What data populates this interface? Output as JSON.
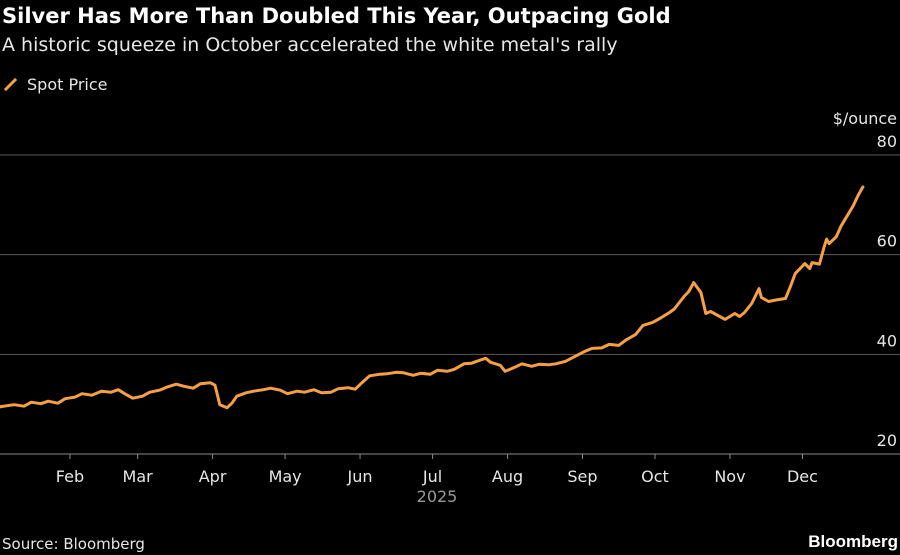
{
  "header": {
    "title": "Silver Has More Than Doubled This Year, Outpacing Gold",
    "subtitle": "A historic squeeze in October accelerated the white metal's rally"
  },
  "legend": {
    "label": "Spot Price",
    "color": "#f7a043"
  },
  "footer": {
    "source": "Source: Bloomberg",
    "brand": "Bloomberg"
  },
  "chart_data": {
    "type": "line",
    "title": "Silver Has More Than Doubled This Year, Outpacing Gold",
    "subtitle": "A historic squeeze in October accelerated the white metal's rally",
    "ylabel": "$/ounce",
    "xlabel": "2025",
    "ylim": [
      20,
      80
    ],
    "yticks": [
      20,
      40,
      60,
      80
    ],
    "grid": true,
    "legend_position": "top-left",
    "background_color": "#000000",
    "grid_color": "#5a5a5a",
    "x_ticks": [
      {
        "label": "Feb",
        "date": "2025-02-01"
      },
      {
        "label": "Mar",
        "date": "2025-03-01"
      },
      {
        "label": "Apr",
        "date": "2025-04-01"
      },
      {
        "label": "May",
        "date": "2025-05-01"
      },
      {
        "label": "Jun",
        "date": "2025-06-01"
      },
      {
        "label": "Jul",
        "date": "2025-07-01"
      },
      {
        "label": "Aug",
        "date": "2025-08-01"
      },
      {
        "label": "Sep",
        "date": "2025-09-01"
      },
      {
        "label": "Oct",
        "date": "2025-10-01"
      },
      {
        "label": "Nov",
        "date": "2025-11-01"
      },
      {
        "label": "Dec",
        "date": "2025-12-01"
      }
    ],
    "series": [
      {
        "name": "Spot Price",
        "color": "#f7a043",
        "points": [
          [
            "2025-01-02",
            29.4
          ],
          [
            "2025-01-06",
            29.7
          ],
          [
            "2025-01-09",
            29.9
          ],
          [
            "2025-01-13",
            29.6
          ],
          [
            "2025-01-16",
            30.4
          ],
          [
            "2025-01-20",
            30.1
          ],
          [
            "2025-01-23",
            30.6
          ],
          [
            "2025-01-27",
            30.2
          ],
          [
            "2025-01-30",
            31.1
          ],
          [
            "2025-02-03",
            31.4
          ],
          [
            "2025-02-06",
            32.1
          ],
          [
            "2025-02-10",
            31.8
          ],
          [
            "2025-02-14",
            32.6
          ],
          [
            "2025-02-18",
            32.4
          ],
          [
            "2025-02-21",
            32.9
          ],
          [
            "2025-02-24",
            32.0
          ],
          [
            "2025-02-27",
            31.2
          ],
          [
            "2025-03-03",
            31.6
          ],
          [
            "2025-03-06",
            32.4
          ],
          [
            "2025-03-10",
            32.8
          ],
          [
            "2025-03-13",
            33.4
          ],
          [
            "2025-03-17",
            34.0
          ],
          [
            "2025-03-20",
            33.6
          ],
          [
            "2025-03-24",
            33.2
          ],
          [
            "2025-03-27",
            34.1
          ],
          [
            "2025-03-31",
            34.3
          ],
          [
            "2025-04-02",
            33.8
          ],
          [
            "2025-04-04",
            29.9
          ],
          [
            "2025-04-07",
            29.3
          ],
          [
            "2025-04-09",
            30.2
          ],
          [
            "2025-04-11",
            31.6
          ],
          [
            "2025-04-15",
            32.3
          ],
          [
            "2025-04-18",
            32.6
          ],
          [
            "2025-04-22",
            32.9
          ],
          [
            "2025-04-25",
            33.2
          ],
          [
            "2025-04-29",
            32.8
          ],
          [
            "2025-05-02",
            32.1
          ],
          [
            "2025-05-06",
            32.6
          ],
          [
            "2025-05-09",
            32.4
          ],
          [
            "2025-05-13",
            32.9
          ],
          [
            "2025-05-16",
            32.3
          ],
          [
            "2025-05-20",
            32.4
          ],
          [
            "2025-05-23",
            33.1
          ],
          [
            "2025-05-27",
            33.3
          ],
          [
            "2025-05-30",
            33.0
          ],
          [
            "2025-06-02",
            34.4
          ],
          [
            "2025-06-05",
            35.7
          ],
          [
            "2025-06-09",
            36.0
          ],
          [
            "2025-06-12",
            36.1
          ],
          [
            "2025-06-16",
            36.4
          ],
          [
            "2025-06-19",
            36.3
          ],
          [
            "2025-06-23",
            35.8
          ],
          [
            "2025-06-26",
            36.2
          ],
          [
            "2025-06-30",
            36.0
          ],
          [
            "2025-07-03",
            36.8
          ],
          [
            "2025-07-07",
            36.6
          ],
          [
            "2025-07-10",
            37.0
          ],
          [
            "2025-07-14",
            38.1
          ],
          [
            "2025-07-17",
            38.2
          ],
          [
            "2025-07-21",
            38.9
          ],
          [
            "2025-07-23",
            39.2
          ],
          [
            "2025-07-25",
            38.4
          ],
          [
            "2025-07-29",
            37.8
          ],
          [
            "2025-07-31",
            36.6
          ],
          [
            "2025-08-04",
            37.4
          ],
          [
            "2025-08-07",
            38.1
          ],
          [
            "2025-08-11",
            37.6
          ],
          [
            "2025-08-14",
            38.0
          ],
          [
            "2025-08-18",
            37.9
          ],
          [
            "2025-08-21",
            38.1
          ],
          [
            "2025-08-25",
            38.6
          ],
          [
            "2025-08-29",
            39.6
          ],
          [
            "2025-09-02",
            40.6
          ],
          [
            "2025-09-05",
            41.2
          ],
          [
            "2025-09-09",
            41.3
          ],
          [
            "2025-09-12",
            42.0
          ],
          [
            "2025-09-16",
            41.8
          ],
          [
            "2025-09-19",
            42.9
          ],
          [
            "2025-09-23",
            44.0
          ],
          [
            "2025-09-26",
            45.8
          ],
          [
            "2025-09-30",
            46.4
          ],
          [
            "2025-10-03",
            47.2
          ],
          [
            "2025-10-07",
            48.4
          ],
          [
            "2025-10-09",
            49.1
          ],
          [
            "2025-10-13",
            51.6
          ],
          [
            "2025-10-15",
            52.6
          ],
          [
            "2025-10-17",
            54.4
          ],
          [
            "2025-10-20",
            52.4
          ],
          [
            "2025-10-22",
            48.2
          ],
          [
            "2025-10-24",
            48.6
          ],
          [
            "2025-10-27",
            47.8
          ],
          [
            "2025-10-30",
            47.0
          ],
          [
            "2025-11-03",
            48.2
          ],
          [
            "2025-11-05",
            47.6
          ],
          [
            "2025-11-07",
            48.4
          ],
          [
            "2025-11-10",
            50.2
          ],
          [
            "2025-11-13",
            53.2
          ],
          [
            "2025-11-14",
            51.4
          ],
          [
            "2025-11-17",
            50.6
          ],
          [
            "2025-11-20",
            50.9
          ],
          [
            "2025-11-24",
            51.2
          ],
          [
            "2025-11-26",
            53.6
          ],
          [
            "2025-11-28",
            56.2
          ],
          [
            "2025-12-02",
            58.2
          ],
          [
            "2025-12-04",
            57.2
          ],
          [
            "2025-12-05",
            58.4
          ],
          [
            "2025-12-08",
            58.1
          ],
          [
            "2025-12-10",
            61.6
          ],
          [
            "2025-12-11",
            63.1
          ],
          [
            "2025-12-12",
            62.2
          ],
          [
            "2025-12-15",
            63.6
          ],
          [
            "2025-12-17",
            65.8
          ],
          [
            "2025-12-19",
            67.4
          ],
          [
            "2025-12-22",
            69.8
          ],
          [
            "2025-12-24",
            71.9
          ],
          [
            "2025-12-26",
            73.6
          ]
        ]
      }
    ]
  }
}
